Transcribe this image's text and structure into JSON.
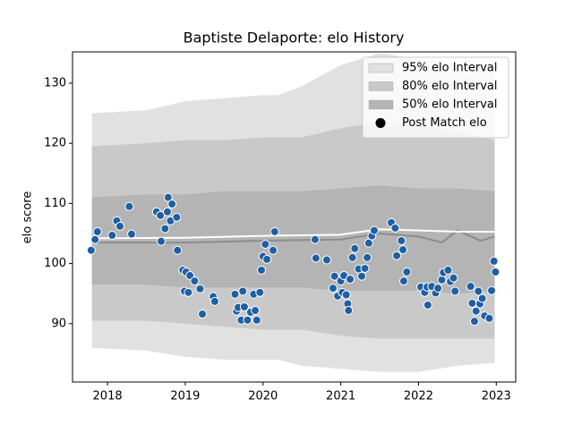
{
  "chart_data": {
    "type": "scatter",
    "title": "Baptiste Delaporte: elo History",
    "ylabel": "elo score",
    "xlim": [
      2017.55,
      2023.25
    ],
    "ylim": [
      80.3,
      135.2
    ],
    "xticks": [
      2018,
      2019,
      2020,
      2021,
      2022,
      2023
    ],
    "yticks": [
      90,
      100,
      110,
      120,
      130
    ],
    "legend": "upper right",
    "bands": [
      {
        "name": "95% elo Interval",
        "color": "#e1e1e1",
        "x": [
          2017.8,
          2018.5,
          2019,
          2019.5,
          2020,
          2020.2,
          2020.5,
          2021,
          2021.5,
          2022,
          2022.5,
          2022.98
        ],
        "upper": [
          125,
          125.5,
          127,
          127.5,
          128,
          128,
          129.5,
          133,
          135,
          134,
          133,
          133
        ],
        "lower": [
          86,
          85.5,
          84.5,
          84,
          84,
          84,
          83,
          82.5,
          82,
          82,
          83,
          83.5
        ]
      },
      {
        "name": "80% elo Interval",
        "color": "#c9c9c9",
        "x": [
          2017.8,
          2018.5,
          2019,
          2019.5,
          2020,
          2020.2,
          2020.5,
          2021,
          2021.5,
          2022,
          2022.5,
          2022.98
        ],
        "upper": [
          119.5,
          120,
          120.5,
          120.5,
          121,
          121,
          121,
          122.5,
          123.5,
          123,
          122,
          120.5
        ],
        "lower": [
          90.5,
          90.5,
          90,
          89.5,
          89,
          89,
          89,
          88,
          87.5,
          87.5,
          87.5,
          87.5
        ]
      },
      {
        "name": "50% elo Interval",
        "color": "#b4b4b4",
        "x": [
          2017.8,
          2018.5,
          2019,
          2019.5,
          2020,
          2020.2,
          2020.5,
          2021,
          2021.5,
          2022,
          2022.5,
          2022.98
        ],
        "upper": [
          111,
          111.5,
          111.5,
          112,
          112,
          112,
          112,
          112.5,
          113,
          112.5,
          112.5,
          112
        ],
        "lower": [
          96.5,
          96.5,
          96,
          96,
          96,
          96,
          96,
          95.5,
          95.5,
          95.5,
          95,
          95.5
        ]
      }
    ],
    "lines": [
      {
        "color": "#8c8c8c",
        "x": [
          2017.8,
          2019,
          2020,
          2021,
          2021.5,
          2022,
          2022.3,
          2022.5,
          2022.8,
          2022.98
        ],
        "values": [
          103.5,
          103.5,
          103.8,
          104.0,
          105.0,
          104.5,
          103.5,
          105.5,
          103.8,
          104.5
        ]
      },
      {
        "color": "#ffffff",
        "x": [
          2017.8,
          2019,
          2020,
          2021,
          2021.5,
          2022,
          2022.5,
          2022.98
        ],
        "values": [
          104.2,
          104.3,
          104.6,
          104.8,
          105.7,
          105.5,
          105.3,
          105.3
        ]
      }
    ],
    "series": [
      {
        "name": "Post Match elo",
        "color": "#1f5fa3",
        "x": [
          2017.79,
          2017.84,
          2017.87,
          2018.06,
          2018.12,
          2018.16,
          2018.28,
          2018.31,
          2018.63,
          2018.68,
          2018.69,
          2018.74,
          2018.77,
          2018.78,
          2018.81,
          2018.83,
          2018.89,
          2018.9,
          2018.97,
          2018.99,
          2019.01,
          2019.04,
          2019.06,
          2019.12,
          2019.19,
          2019.22,
          2019.36,
          2019.38,
          2019.64,
          2019.66,
          2019.68,
          2019.72,
          2019.74,
          2019.76,
          2019.8,
          2019.84,
          2019.88,
          2019.9,
          2019.92,
          2019.96,
          2019.98,
          2020.0,
          2020.03,
          2020.05,
          2020.13,
          2020.15,
          2020.67,
          2020.68,
          2020.82,
          2020.9,
          2020.92,
          2020.96,
          2021.0,
          2021.02,
          2021.04,
          2021.07,
          2021.09,
          2021.1,
          2021.12,
          2021.15,
          2021.18,
          2021.23,
          2021.27,
          2021.31,
          2021.34,
          2021.36,
          2021.4,
          2021.43,
          2021.65,
          2021.7,
          2021.72,
          2021.78,
          2021.8,
          2021.81,
          2021.85,
          2022.03,
          2022.08,
          2022.11,
          2022.12,
          2022.17,
          2022.22,
          2022.25,
          2022.3,
          2022.32,
          2022.38,
          2022.41,
          2022.45,
          2022.47,
          2022.67,
          2022.69,
          2022.72,
          2022.74,
          2022.77,
          2022.79,
          2022.82,
          2022.85,
          2022.91,
          2022.94,
          2022.97,
          2022.99
        ],
        "values": [
          102.2,
          104.0,
          105.3,
          104.7,
          107.1,
          106.2,
          109.5,
          104.9,
          108.6,
          108.0,
          103.7,
          105.8,
          108.6,
          111.0,
          107.1,
          109.9,
          107.7,
          102.2,
          98.9,
          95.4,
          98.6,
          95.2,
          98.0,
          97.1,
          95.8,
          91.6,
          94.5,
          93.7,
          94.9,
          92.1,
          92.7,
          90.6,
          95.4,
          92.8,
          90.6,
          91.9,
          94.9,
          92.2,
          90.6,
          95.2,
          98.9,
          101.2,
          103.2,
          100.7,
          102.2,
          105.3,
          104.0,
          100.9,
          100.6,
          95.9,
          97.9,
          94.6,
          97.1,
          95.2,
          98.0,
          94.8,
          93.3,
          92.2,
          97.4,
          101.0,
          102.5,
          99.1,
          97.9,
          99.2,
          101.0,
          103.4,
          104.6,
          105.5,
          106.8,
          105.9,
          101.3,
          103.8,
          102.3,
          97.1,
          98.6,
          96.1,
          95.2,
          96.1,
          93.1,
          96.2,
          95.1,
          95.9,
          97.3,
          98.5,
          98.9,
          97.0,
          97.6,
          95.4,
          96.2,
          93.4,
          90.4,
          92.1,
          95.4,
          93.3,
          94.2,
          91.3,
          90.9,
          95.5,
          100.4,
          98.6
        ]
      }
    ]
  }
}
